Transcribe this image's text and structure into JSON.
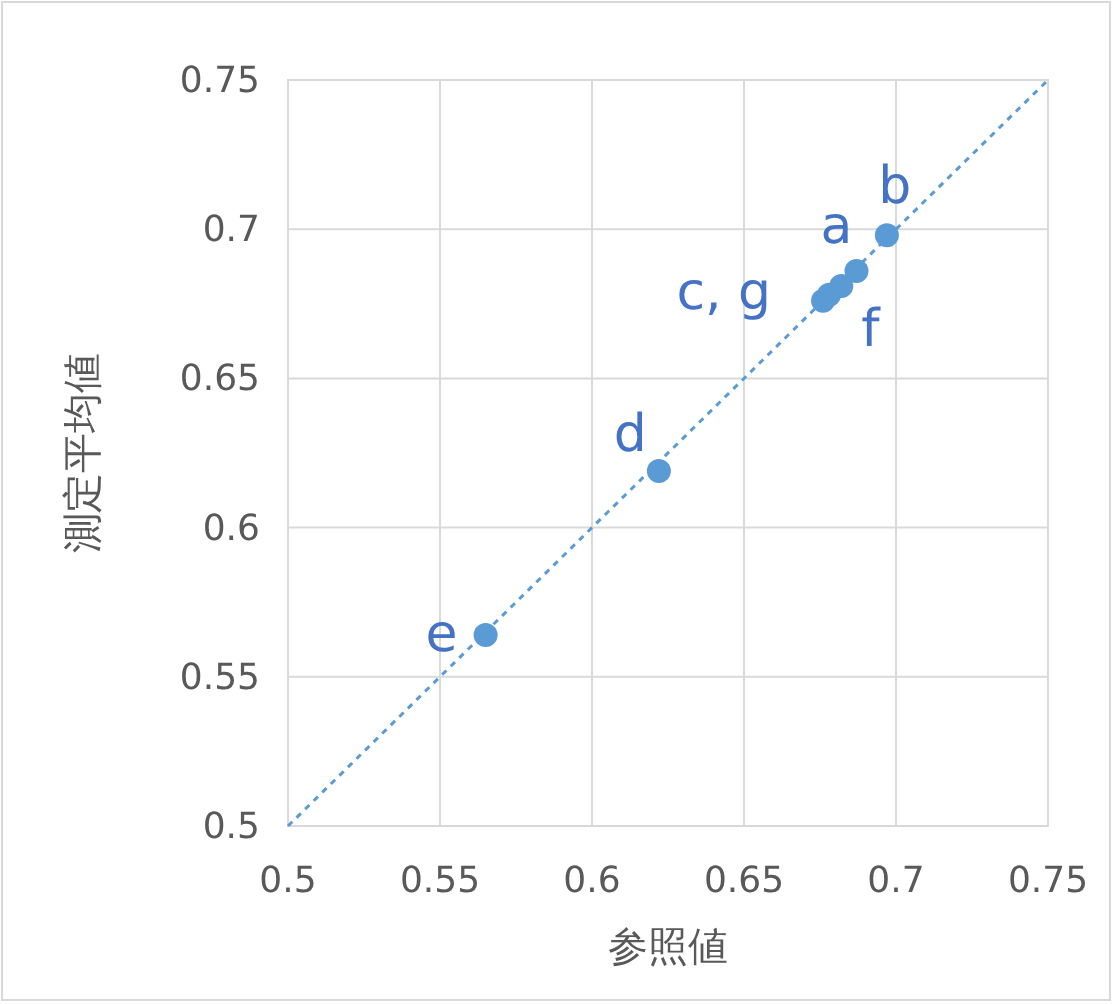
{
  "chart_data": {
    "type": "scatter",
    "xlabel": "参照値",
    "ylabel": "測定平均値",
    "xlim": [
      0.5,
      0.75
    ],
    "ylim": [
      0.5,
      0.75
    ],
    "xticks": [
      0.5,
      0.55,
      0.6,
      0.65,
      0.7,
      0.75
    ],
    "yticks": [
      0.5,
      0.55,
      0.6,
      0.65,
      0.7,
      0.75
    ],
    "grid": true,
    "series": [
      {
        "marker": "circle",
        "color": "#5b9bd5",
        "x": [
          0.687,
          0.697,
          0.676,
          0.622,
          0.565,
          0.682,
          0.678
        ],
        "values": [
          0.686,
          0.698,
          0.676,
          0.619,
          0.564,
          0.681,
          0.678
        ]
      },
      {
        "type": "line",
        "marker": "none",
        "color": "#5b9bd5",
        "line_style": "dotted",
        "x": [
          0.5,
          0.75
        ],
        "values": [
          0.5,
          0.75
        ]
      }
    ],
    "annotations": [
      {
        "text": "a",
        "x": 0.687,
        "y": 0.686
      },
      {
        "text": "b",
        "x": 0.697,
        "y": 0.698
      },
      {
        "text": "c, g",
        "x": 0.676,
        "y": 0.676
      },
      {
        "text": "d",
        "x": 0.622,
        "y": 0.619
      },
      {
        "text": "e",
        "x": 0.565,
        "y": 0.564
      },
      {
        "text": "f",
        "x": 0.682,
        "y": 0.681
      }
    ]
  }
}
